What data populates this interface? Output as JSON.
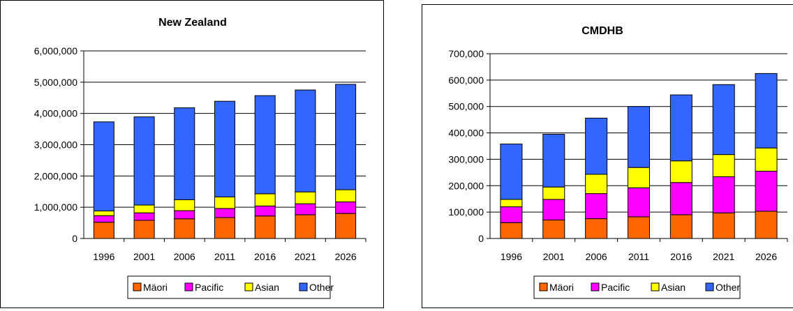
{
  "colors": {
    "Maori": "#ff6600",
    "Pacific": "#ff00ff",
    "Asian": "#ffff00",
    "Other": "#3366ff"
  },
  "chart_data": [
    {
      "type": "bar",
      "stacked": true,
      "title": "New Zealand",
      "categories": [
        "1996",
        "2001",
        "2006",
        "2011",
        "2016",
        "2021",
        "2026"
      ],
      "ylim": [
        0,
        6000000
      ],
      "yticks": [
        0,
        1000000,
        2000000,
        3000000,
        4000000,
        5000000,
        6000000
      ],
      "ytick_labels": [
        "0",
        "1,000,000",
        "2,000,000",
        "3,000,000",
        "4,000,000",
        "5,000,000",
        "6,000,000"
      ],
      "grid": true,
      "legend_position": "bottom",
      "series": [
        {
          "name": "Mäori",
          "color_key": "Maori",
          "values": [
            520000,
            580000,
            630000,
            670000,
            720000,
            760000,
            800000
          ]
        },
        {
          "name": "Pacific",
          "color_key": "Pacific",
          "values": [
            210000,
            240000,
            260000,
            290000,
            320000,
            350000,
            370000
          ]
        },
        {
          "name": "Asian",
          "color_key": "Asian",
          "values": [
            150000,
            250000,
            350000,
            370000,
            390000,
            380000,
            390000
          ]
        },
        {
          "name": "Other",
          "color_key": "Other",
          "values": [
            2850000,
            2820000,
            2940000,
            3060000,
            3140000,
            3260000,
            3370000
          ]
        }
      ]
    },
    {
      "type": "bar",
      "stacked": true,
      "title": "CMDHB",
      "categories": [
        "1996",
        "2001",
        "2006",
        "2011",
        "2016",
        "2021",
        "2026"
      ],
      "ylim": [
        0,
        700000
      ],
      "yticks": [
        0,
        100000,
        200000,
        300000,
        400000,
        500000,
        600000,
        700000
      ],
      "ytick_labels": [
        "0",
        "100,000",
        "200,000",
        "300,000",
        "400,000",
        "500,000",
        "600,000",
        "700,000"
      ],
      "grid": true,
      "legend_position": "bottom",
      "series": [
        {
          "name": "Mäori",
          "color_key": "Maori",
          "values": [
            60000,
            70000,
            75000,
            82000,
            90000,
            97000,
            103000
          ]
        },
        {
          "name": "Pacific",
          "color_key": "Pacific",
          "values": [
            60000,
            78000,
            95000,
            110000,
            122000,
            137000,
            152000
          ]
        },
        {
          "name": "Asian",
          "color_key": "Asian",
          "values": [
            28000,
            47000,
            73000,
            77000,
            82000,
            84000,
            88000
          ]
        },
        {
          "name": "Other",
          "color_key": "Other",
          "values": [
            210000,
            200000,
            213000,
            231000,
            250000,
            265000,
            282000
          ]
        }
      ]
    }
  ]
}
